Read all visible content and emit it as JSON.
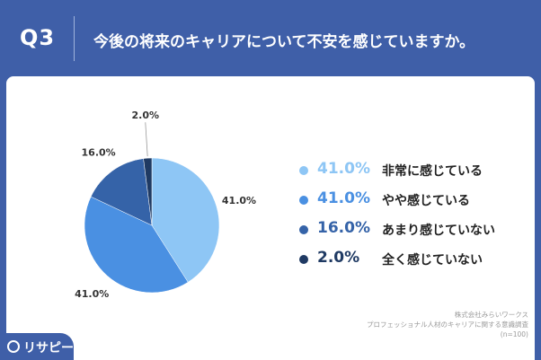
{
  "header": {
    "question_number": "Q3",
    "question_text": "今後の将来のキャリアについて不安を感じていますか。"
  },
  "chart_data": {
    "type": "pie",
    "start_angle_deg": 0,
    "direction": "clockwise",
    "slices": [
      {
        "label": "非常に感じている",
        "value": 41.0,
        "value_label": "41.0%",
        "color": "#8ec6f5"
      },
      {
        "label": "やや感じている",
        "value": 41.0,
        "value_label": "41.0%",
        "color": "#4a90e2"
      },
      {
        "label": "あまり感じていない",
        "value": 16.0,
        "value_label": "16.0%",
        "color": "#3563a8"
      },
      {
        "label": "全く感じていない",
        "value": 2.0,
        "value_label": "2.0%",
        "color": "#1f3a63"
      }
    ],
    "legend_position": "right"
  },
  "legend": [
    {
      "pct": "41.0%",
      "label": "非常に感じている",
      "color": "#8ec6f5"
    },
    {
      "pct": "41.0%",
      "label": "やや感じている",
      "color": "#4a90e2"
    },
    {
      "pct": "16.0%",
      "label": "あまり感じていない",
      "color": "#3563a8"
    },
    {
      "pct": "2.0%",
      "label": "全く感じていない",
      "color": "#1f3a63"
    }
  ],
  "source": {
    "line1": "株式会社みらいワークス",
    "line2": "プロフェッショナル人材のキャリアに関する意識調査",
    "line3": "(n=100)"
  },
  "logo": {
    "text": "リサピー"
  }
}
